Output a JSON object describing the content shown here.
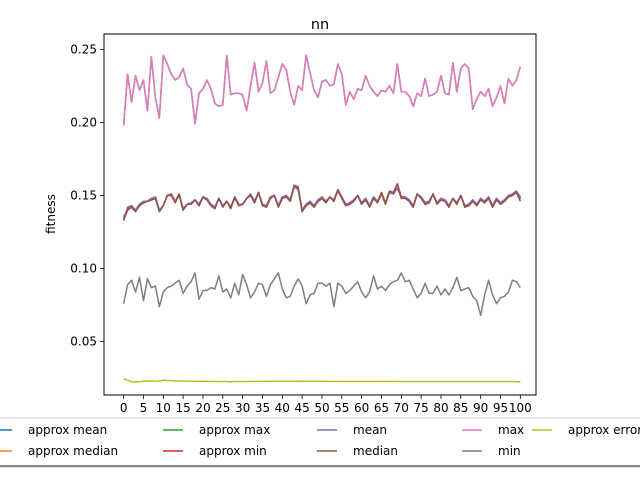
{
  "chart_data": {
    "type": "line",
    "title": "nn",
    "xlabel": "",
    "ylabel": "fitness",
    "xlim": [
      -4.95,
      103.95
    ],
    "ylim": [
      0.0135,
      0.2605
    ],
    "xticks": [
      0,
      5,
      10,
      15,
      20,
      25,
      30,
      35,
      40,
      45,
      50,
      55,
      60,
      65,
      70,
      75,
      80,
      85,
      90,
      95,
      100
    ],
    "yticks": [
      0.05,
      0.1,
      0.15,
      0.2,
      0.25
    ],
    "ytick_labels": [
      "0.05",
      "0.10",
      "0.15",
      "0.20",
      "0.25"
    ],
    "grid": false,
    "legend_position": "bottom, outside plot area",
    "x": [
      0,
      1,
      2,
      3,
      4,
      5,
      6,
      7,
      8,
      9,
      10,
      11,
      12,
      13,
      14,
      15,
      16,
      17,
      18,
      19,
      20,
      21,
      22,
      23,
      24,
      25,
      26,
      27,
      28,
      29,
      30,
      31,
      32,
      33,
      34,
      35,
      36,
      37,
      38,
      39,
      40,
      41,
      42,
      43,
      44,
      45,
      46,
      47,
      48,
      49,
      50,
      51,
      52,
      53,
      54,
      55,
      56,
      57,
      58,
      59,
      60,
      61,
      62,
      63,
      64,
      65,
      66,
      67,
      68,
      69,
      70,
      71,
      72,
      73,
      74,
      75,
      76,
      77,
      78,
      79,
      80,
      81,
      82,
      83,
      84,
      85,
      86,
      87,
      88,
      89,
      90,
      91,
      92,
      93,
      94,
      95,
      96,
      97,
      98,
      99,
      100
    ],
    "series": [
      {
        "name": "approx mean",
        "color": "#1f77b4",
        "values": [
          0.135,
          0.141,
          0.143,
          0.14,
          0.144,
          0.146,
          0.146,
          0.148,
          0.149,
          0.14,
          0.143,
          0.15,
          0.15,
          0.146,
          0.15,
          0.141,
          0.144,
          0.145,
          0.147,
          0.144,
          0.149,
          0.148,
          0.144,
          0.142,
          0.148,
          0.143,
          0.146,
          0.142,
          0.149,
          0.144,
          0.144,
          0.148,
          0.151,
          0.146,
          0.152,
          0.144,
          0.143,
          0.149,
          0.15,
          0.143,
          0.149,
          0.15,
          0.147,
          0.156,
          0.154,
          0.14,
          0.144,
          0.146,
          0.143,
          0.147,
          0.149,
          0.146,
          0.149,
          0.147,
          0.153,
          0.149,
          0.144,
          0.145,
          0.147,
          0.15,
          0.145,
          0.148,
          0.143,
          0.149,
          0.146,
          0.151,
          0.145,
          0.152,
          0.151,
          0.155,
          0.149,
          0.149,
          0.147,
          0.143,
          0.151,
          0.149,
          0.145,
          0.146,
          0.151,
          0.145,
          0.148,
          0.147,
          0.143,
          0.148,
          0.145,
          0.15,
          0.143,
          0.144,
          0.147,
          0.144,
          0.148,
          0.146,
          0.149,
          0.143,
          0.148,
          0.145,
          0.147,
          0.15,
          0.151,
          0.153,
          0.149
        ]
      },
      {
        "name": "approx median",
        "color": "#ff7f0e",
        "values": [
          0.134,
          0.14,
          0.142,
          0.139,
          0.144,
          0.145,
          0.146,
          0.148,
          0.148,
          0.139,
          0.143,
          0.15,
          0.15,
          0.145,
          0.151,
          0.14,
          0.144,
          0.144,
          0.147,
          0.143,
          0.149,
          0.147,
          0.143,
          0.141,
          0.148,
          0.142,
          0.146,
          0.141,
          0.149,
          0.143,
          0.144,
          0.148,
          0.15,
          0.145,
          0.152,
          0.143,
          0.142,
          0.148,
          0.15,
          0.142,
          0.148,
          0.149,
          0.146,
          0.157,
          0.155,
          0.139,
          0.143,
          0.145,
          0.142,
          0.146,
          0.148,
          0.145,
          0.149,
          0.146,
          0.153,
          0.148,
          0.143,
          0.144,
          0.146,
          0.15,
          0.144,
          0.147,
          0.142,
          0.148,
          0.145,
          0.151,
          0.144,
          0.152,
          0.151,
          0.155,
          0.148,
          0.148,
          0.146,
          0.142,
          0.151,
          0.148,
          0.144,
          0.145,
          0.151,
          0.144,
          0.147,
          0.146,
          0.142,
          0.148,
          0.144,
          0.15,
          0.142,
          0.143,
          0.146,
          0.143,
          0.147,
          0.145,
          0.148,
          0.142,
          0.147,
          0.144,
          0.146,
          0.149,
          0.15,
          0.152,
          0.147
        ]
      },
      {
        "name": "approx max",
        "color": "#2ca02c",
        "values": [
          0.198,
          0.233,
          0.214,
          0.232,
          0.222,
          0.229,
          0.208,
          0.245,
          0.217,
          0.203,
          0.246,
          0.24,
          0.233,
          0.229,
          0.231,
          0.237,
          0.226,
          0.223,
          0.199,
          0.22,
          0.223,
          0.229,
          0.223,
          0.213,
          0.211,
          0.212,
          0.246,
          0.219,
          0.22,
          0.22,
          0.219,
          0.208,
          0.225,
          0.241,
          0.221,
          0.227,
          0.242,
          0.22,
          0.222,
          0.231,
          0.24,
          0.236,
          0.221,
          0.212,
          0.225,
          0.222,
          0.246,
          0.234,
          0.222,
          0.217,
          0.228,
          0.229,
          0.225,
          0.226,
          0.24,
          0.233,
          0.212,
          0.221,
          0.216,
          0.223,
          0.222,
          0.232,
          0.225,
          0.221,
          0.218,
          0.222,
          0.221,
          0.225,
          0.22,
          0.24,
          0.221,
          0.221,
          0.218,
          0.211,
          0.22,
          0.218,
          0.23,
          0.218,
          0.219,
          0.221,
          0.232,
          0.22,
          0.219,
          0.241,
          0.221,
          0.237,
          0.24,
          0.237,
          0.209,
          0.216,
          0.221,
          0.218,
          0.223,
          0.211,
          0.217,
          0.225,
          0.213,
          0.23,
          0.225,
          0.229,
          0.238
        ]
      },
      {
        "name": "approx min",
        "color": "#d62728",
        "values": [
          0.133,
          0.142,
          0.143,
          0.14,
          0.143,
          0.145,
          0.146,
          0.147,
          0.148,
          0.14,
          0.143,
          0.15,
          0.151,
          0.146,
          0.151,
          0.14,
          0.144,
          0.144,
          0.147,
          0.143,
          0.149,
          0.147,
          0.144,
          0.142,
          0.148,
          0.143,
          0.146,
          0.142,
          0.148,
          0.144,
          0.144,
          0.148,
          0.15,
          0.146,
          0.152,
          0.144,
          0.143,
          0.149,
          0.15,
          0.143,
          0.149,
          0.149,
          0.147,
          0.157,
          0.154,
          0.14,
          0.144,
          0.146,
          0.143,
          0.147,
          0.149,
          0.146,
          0.149,
          0.147,
          0.154,
          0.149,
          0.144,
          0.145,
          0.147,
          0.15,
          0.145,
          0.148,
          0.143,
          0.149,
          0.146,
          0.152,
          0.145,
          0.153,
          0.152,
          0.158,
          0.149,
          0.149,
          0.147,
          0.143,
          0.151,
          0.149,
          0.145,
          0.146,
          0.151,
          0.145,
          0.148,
          0.147,
          0.143,
          0.148,
          0.145,
          0.15,
          0.143,
          0.144,
          0.147,
          0.143,
          0.148,
          0.146,
          0.149,
          0.143,
          0.148,
          0.145,
          0.147,
          0.15,
          0.151,
          0.153,
          0.148
        ]
      },
      {
        "name": "mean",
        "color": "#9467bd",
        "values": [
          0.135,
          0.141,
          0.143,
          0.14,
          0.144,
          0.146,
          0.146,
          0.148,
          0.149,
          0.14,
          0.143,
          0.15,
          0.15,
          0.146,
          0.15,
          0.141,
          0.144,
          0.145,
          0.147,
          0.144,
          0.149,
          0.148,
          0.144,
          0.142,
          0.148,
          0.143,
          0.146,
          0.142,
          0.149,
          0.144,
          0.144,
          0.148,
          0.151,
          0.146,
          0.152,
          0.144,
          0.143,
          0.149,
          0.15,
          0.143,
          0.149,
          0.15,
          0.147,
          0.156,
          0.154,
          0.14,
          0.144,
          0.146,
          0.143,
          0.147,
          0.149,
          0.146,
          0.149,
          0.147,
          0.153,
          0.149,
          0.144,
          0.145,
          0.147,
          0.15,
          0.145,
          0.148,
          0.143,
          0.149,
          0.146,
          0.151,
          0.145,
          0.152,
          0.151,
          0.155,
          0.149,
          0.149,
          0.147,
          0.143,
          0.151,
          0.149,
          0.145,
          0.146,
          0.151,
          0.145,
          0.148,
          0.147,
          0.143,
          0.148,
          0.145,
          0.15,
          0.143,
          0.144,
          0.147,
          0.144,
          0.148,
          0.146,
          0.149,
          0.143,
          0.148,
          0.145,
          0.147,
          0.15,
          0.151,
          0.153,
          0.149
        ]
      },
      {
        "name": "median",
        "color": "#8c564b",
        "values": [
          0.133,
          0.14,
          0.142,
          0.139,
          0.143,
          0.145,
          0.146,
          0.147,
          0.148,
          0.139,
          0.143,
          0.15,
          0.151,
          0.145,
          0.151,
          0.14,
          0.144,
          0.144,
          0.147,
          0.143,
          0.149,
          0.147,
          0.143,
          0.141,
          0.148,
          0.142,
          0.146,
          0.141,
          0.149,
          0.143,
          0.144,
          0.148,
          0.15,
          0.145,
          0.152,
          0.143,
          0.142,
          0.148,
          0.15,
          0.142,
          0.148,
          0.149,
          0.146,
          0.157,
          0.156,
          0.139,
          0.143,
          0.145,
          0.142,
          0.146,
          0.148,
          0.145,
          0.149,
          0.146,
          0.154,
          0.148,
          0.143,
          0.144,
          0.146,
          0.15,
          0.144,
          0.147,
          0.142,
          0.148,
          0.145,
          0.152,
          0.144,
          0.153,
          0.152,
          0.158,
          0.148,
          0.148,
          0.146,
          0.142,
          0.151,
          0.148,
          0.144,
          0.145,
          0.151,
          0.144,
          0.147,
          0.146,
          0.142,
          0.148,
          0.144,
          0.15,
          0.142,
          0.143,
          0.146,
          0.143,
          0.147,
          0.145,
          0.148,
          0.142,
          0.147,
          0.144,
          0.146,
          0.149,
          0.15,
          0.152,
          0.146
        ]
      },
      {
        "name": "max",
        "color": "#e377c2",
        "values": [
          0.198,
          0.233,
          0.214,
          0.232,
          0.222,
          0.229,
          0.208,
          0.245,
          0.217,
          0.203,
          0.246,
          0.24,
          0.233,
          0.229,
          0.231,
          0.237,
          0.226,
          0.223,
          0.199,
          0.22,
          0.223,
          0.229,
          0.223,
          0.213,
          0.211,
          0.212,
          0.246,
          0.219,
          0.22,
          0.22,
          0.219,
          0.208,
          0.225,
          0.241,
          0.221,
          0.227,
          0.242,
          0.22,
          0.222,
          0.231,
          0.24,
          0.236,
          0.221,
          0.212,
          0.225,
          0.222,
          0.246,
          0.234,
          0.222,
          0.217,
          0.228,
          0.229,
          0.225,
          0.226,
          0.24,
          0.233,
          0.212,
          0.221,
          0.216,
          0.223,
          0.222,
          0.232,
          0.225,
          0.221,
          0.218,
          0.222,
          0.221,
          0.225,
          0.22,
          0.24,
          0.221,
          0.221,
          0.218,
          0.211,
          0.22,
          0.218,
          0.23,
          0.218,
          0.219,
          0.221,
          0.232,
          0.22,
          0.219,
          0.241,
          0.221,
          0.237,
          0.24,
          0.237,
          0.209,
          0.216,
          0.221,
          0.218,
          0.223,
          0.211,
          0.217,
          0.225,
          0.213,
          0.23,
          0.225,
          0.229,
          0.238
        ]
      },
      {
        "name": "min",
        "color": "#7f7f7f",
        "values": [
          0.076,
          0.089,
          0.092,
          0.084,
          0.094,
          0.078,
          0.093,
          0.087,
          0.088,
          0.074,
          0.084,
          0.087,
          0.088,
          0.09,
          0.092,
          0.083,
          0.088,
          0.091,
          0.097,
          0.079,
          0.085,
          0.085,
          0.087,
          0.086,
          0.095,
          0.084,
          0.086,
          0.08,
          0.09,
          0.082,
          0.096,
          0.089,
          0.08,
          0.084,
          0.09,
          0.089,
          0.081,
          0.089,
          0.093,
          0.097,
          0.086,
          0.08,
          0.081,
          0.088,
          0.093,
          0.088,
          0.076,
          0.082,
          0.083,
          0.09,
          0.09,
          0.088,
          0.09,
          0.074,
          0.09,
          0.088,
          0.083,
          0.085,
          0.088,
          0.091,
          0.084,
          0.08,
          0.084,
          0.095,
          0.086,
          0.088,
          0.085,
          0.089,
          0.091,
          0.092,
          0.097,
          0.091,
          0.092,
          0.086,
          0.08,
          0.083,
          0.09,
          0.083,
          0.083,
          0.088,
          0.082,
          0.086,
          0.082,
          0.087,
          0.094,
          0.085,
          0.086,
          0.087,
          0.081,
          0.078,
          0.068,
          0.082,
          0.092,
          0.082,
          0.076,
          0.08,
          0.081,
          0.084,
          0.092,
          0.091,
          0.087
        ]
      },
      {
        "name": "approx error",
        "color": "#bcbd22",
        "values": [
          0.0245,
          0.0237,
          0.0225,
          0.0224,
          0.0226,
          0.023,
          0.0229,
          0.0232,
          0.0228,
          0.0231,
          0.0236,
          0.0234,
          0.0233,
          0.0231,
          0.0231,
          0.0231,
          0.023,
          0.0229,
          0.0229,
          0.0228,
          0.0229,
          0.0228,
          0.0228,
          0.0227,
          0.0227,
          0.0227,
          0.0227,
          0.0226,
          0.0227,
          0.0227,
          0.0227,
          0.0227,
          0.0228,
          0.0228,
          0.0228,
          0.0228,
          0.0229,
          0.0229,
          0.0229,
          0.0229,
          0.0229,
          0.0229,
          0.0229,
          0.0229,
          0.0229,
          0.023,
          0.0229,
          0.0229,
          0.0229,
          0.0229,
          0.0229,
          0.0228,
          0.0228,
          0.0228,
          0.0228,
          0.0228,
          0.0228,
          0.0228,
          0.0228,
          0.0228,
          0.0228,
          0.0228,
          0.0228,
          0.0228,
          0.0228,
          0.0228,
          0.0228,
          0.0228,
          0.0228,
          0.0227,
          0.0227,
          0.0227,
          0.0227,
          0.0227,
          0.0227,
          0.0227,
          0.0227,
          0.0227,
          0.0227,
          0.0227,
          0.0227,
          0.0227,
          0.0227,
          0.0227,
          0.0227,
          0.0227,
          0.0227,
          0.0227,
          0.0227,
          0.0227,
          0.0227,
          0.0227,
          0.0227,
          0.0227,
          0.0227,
          0.0227,
          0.0227,
          0.0227,
          0.0227,
          0.0226,
          0.0226
        ]
      }
    ],
    "legend_order": [
      "approx mean",
      "approx median",
      "approx max",
      "approx min",
      "mean",
      "median",
      "max",
      "min",
      "approx error"
    ]
  }
}
